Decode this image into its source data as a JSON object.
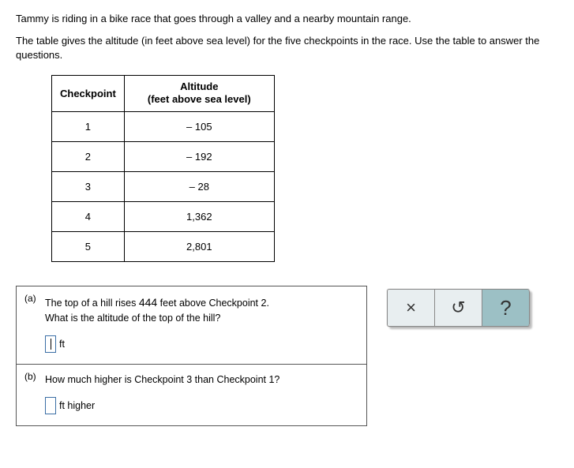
{
  "intro": {
    "line1": "Tammy is riding in a bike race that goes through a valley and a nearby mountain range.",
    "line2": "The table gives the altitude (in feet above sea level) for the five checkpoints in the race. Use the table to answer the questions."
  },
  "table": {
    "headers": {
      "col1": "Checkpoint",
      "col2_line1": "Altitude",
      "col2_line2": "(feet above sea level)"
    },
    "rows": [
      {
        "checkpoint": "1",
        "altitude": "– 105"
      },
      {
        "checkpoint": "2",
        "altitude": "– 192"
      },
      {
        "checkpoint": "3",
        "altitude": "– 28"
      },
      {
        "checkpoint": "4",
        "altitude": "1,362"
      },
      {
        "checkpoint": "5",
        "altitude": "2,801"
      }
    ]
  },
  "questions": {
    "a": {
      "label": "(a)",
      "text_before": "The top of a hill rises ",
      "value": "444",
      "text_after": " feet above Checkpoint 2.",
      "line2": "What is the altitude of the top of the hill?",
      "unit": "ft"
    },
    "b": {
      "label": "(b)",
      "text": "How much higher is Checkpoint 3 than Checkpoint 1?",
      "unit_after": "ft higher"
    }
  },
  "toolbox": {
    "close": "×",
    "reset": "↺",
    "help": "?"
  }
}
